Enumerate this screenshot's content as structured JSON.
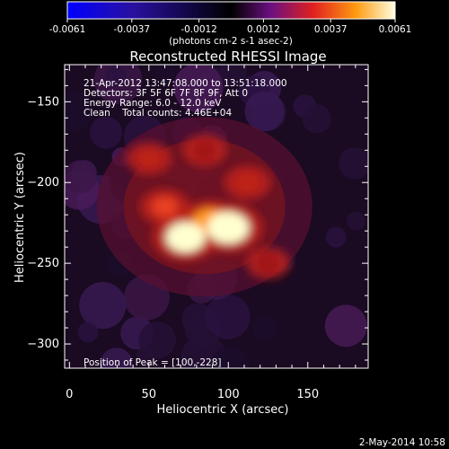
{
  "chart_data": {
    "type": "heatmap",
    "title": "Reconstructed RHESSI Image",
    "colorbar": {
      "ticks": [
        "-0.0061",
        "-0.0037",
        "-0.0012",
        "0.0012",
        "0.0037",
        "0.0061"
      ],
      "unit_label": "(photons cm-2 s-1 asec-2)",
      "range": [
        -0.0061,
        0.0061
      ]
    },
    "xlabel": "Heliocentric X (arcsec)",
    "ylabel": "Heliocentric Y (arcsec)",
    "xlim": [
      -3,
      188
    ],
    "ylim": [
      -315,
      -127
    ],
    "xticks": [
      0,
      50,
      100,
      150
    ],
    "yticks": [
      -150,
      -200,
      -250,
      -300
    ],
    "annotations": {
      "time_range": "21-Apr-2012 13:47:08.000 to 13:51:18.000",
      "detectors": "Detectors: 3F 5F 6F 7F 8F 9F, Att 0",
      "energy_range": "Energy Range: 6.0 - 12.0 keV",
      "clean": "Clean    Total counts: 4.46E+04",
      "peak": "Position of Peak = [100,-228]"
    },
    "sources": [
      {
        "x": 100,
        "y": -228,
        "intensity": 1.0
      },
      {
        "x": 73,
        "y": -234,
        "intensity": 0.92
      },
      {
        "x": 88,
        "y": -224,
        "intensity": 0.7
      },
      {
        "x": 60,
        "y": -215,
        "intensity": 0.45
      },
      {
        "x": 112,
        "y": -200,
        "intensity": 0.35
      },
      {
        "x": 85,
        "y": -180,
        "intensity": 0.28
      },
      {
        "x": 50,
        "y": -185,
        "intensity": 0.3
      },
      {
        "x": 125,
        "y": -250,
        "intensity": 0.25
      }
    ]
  },
  "footer": {
    "date": "2-May-2014 10:58"
  }
}
